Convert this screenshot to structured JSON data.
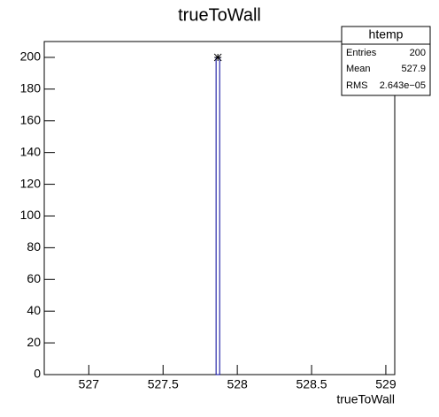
{
  "chart_data": {
    "type": "histogram",
    "title": "trueToWall",
    "x_label": "trueToWall",
    "bins": [
      527.857,
      527.881
    ],
    "counts": [
      200
    ],
    "color": "#000099",
    "xlim": [
      526.7,
      529.06
    ],
    "xticks": [
      527,
      527.5,
      528,
      528.5,
      529
    ],
    "ylim": [
      0,
      210
    ],
    "yticks": [
      0,
      20,
      40,
      60,
      80,
      100,
      120,
      140,
      160,
      180,
      200
    ],
    "stats": {
      "name": "htemp",
      "rows": [
        [
          "Entries",
          "200"
        ],
        [
          "Mean",
          "527.9"
        ],
        [
          "RMS",
          "2.643e−05"
        ]
      ]
    }
  }
}
